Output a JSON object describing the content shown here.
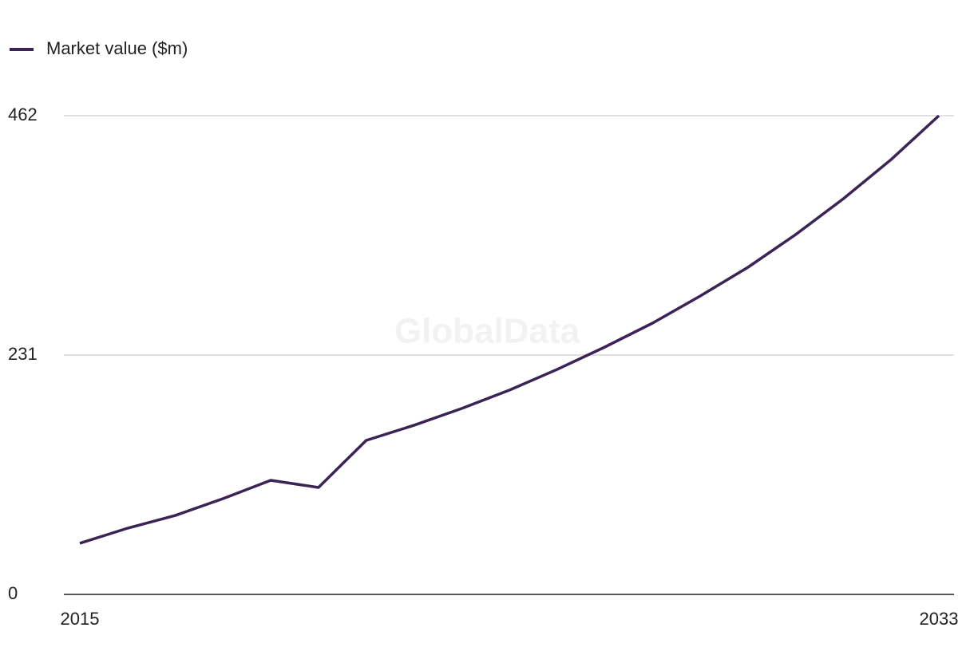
{
  "chart_data": {
    "type": "line",
    "watermark": "GlobalData",
    "x": [
      2015,
      2016,
      2017,
      2018,
      2019,
      2020,
      2021,
      2022,
      2023,
      2024,
      2025,
      2026,
      2027,
      2028,
      2029,
      2030,
      2031,
      2032,
      2033
    ],
    "series": [
      {
        "name": "Market value ($m)",
        "color": "#3a2456",
        "values": [
          49.3,
          63.9,
          76.2,
          92.4,
          110.1,
          103.2,
          148.6,
          163.2,
          179.4,
          197.1,
          217.1,
          238.7,
          261.8,
          288.0,
          315.7,
          347.3,
          381.9,
          419.7,
          462
        ]
      }
    ],
    "xlim": [
      2015,
      2033
    ],
    "xticks": [
      2015,
      2033
    ],
    "ylim": [
      0,
      462
    ],
    "yticks": [
      0,
      231,
      462
    ],
    "grid": true,
    "legend": "top-left"
  }
}
